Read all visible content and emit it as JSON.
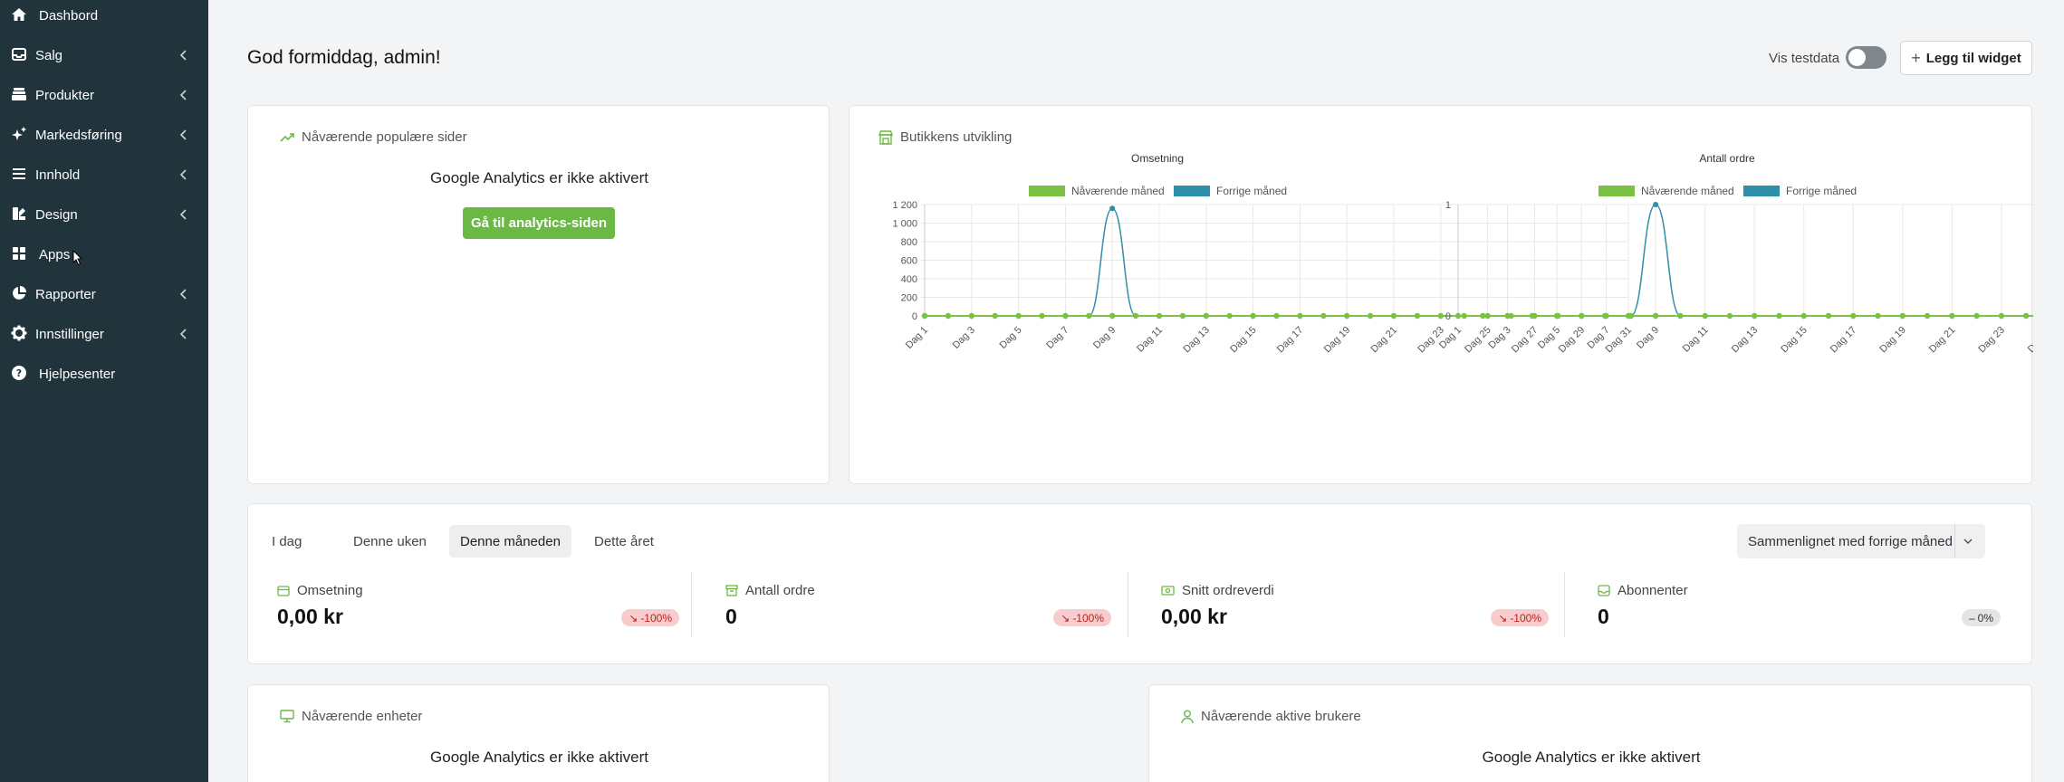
{
  "sidebar": {
    "items": [
      {
        "label": "Dashbord",
        "icon": "home-icon",
        "chevron": false
      },
      {
        "label": "Salg",
        "icon": "inbox-icon",
        "chevron": true
      },
      {
        "label": "Produkter",
        "icon": "layers-icon",
        "chevron": true
      },
      {
        "label": "Markedsføring",
        "icon": "sparkle-icon",
        "chevron": true
      },
      {
        "label": "Innhold",
        "icon": "menu-icon",
        "chevron": true
      },
      {
        "label": "Design",
        "icon": "palette-icon",
        "chevron": true
      },
      {
        "label": "Apps",
        "icon": "grid-icon",
        "chevron": false
      },
      {
        "label": "Rapporter",
        "icon": "pie-chart-icon",
        "chevron": true
      },
      {
        "label": "Innstillinger",
        "icon": "gear-icon",
        "chevron": true
      },
      {
        "label": "Hjelpesenter",
        "icon": "help-icon",
        "chevron": false
      }
    ]
  },
  "header": {
    "greeting": "God formiddag, admin!",
    "test_label": "Vis testdata",
    "add_widget_label": "Legg til widget"
  },
  "popular_pages": {
    "title": "Nåværende populære sider",
    "message": "Google Analytics er ikke aktivert",
    "button_label": "Gå til analytics-siden"
  },
  "store_dev": {
    "title": "Butikkens utvikling",
    "legend_current": "Nåværende måned",
    "legend_previous": "Forrige måned"
  },
  "chart_data": [
    {
      "type": "line",
      "title": "Omsetning",
      "categories": [
        "Dag 1",
        "Dag 2",
        "Dag 3",
        "Dag 4",
        "Dag 5",
        "Dag 6",
        "Dag 7",
        "Dag 8",
        "Dag 9",
        "Dag 10",
        "Dag 11",
        "Dag 12",
        "Dag 13",
        "Dag 14",
        "Dag 15",
        "Dag 16",
        "Dag 17",
        "Dag 18",
        "Dag 19",
        "Dag 20",
        "Dag 21",
        "Dag 22",
        "Dag 23",
        "Dag 24",
        "Dag 25",
        "Dag 26",
        "Dag 27",
        "Dag 28",
        "Dag 29",
        "Dag 30",
        "Dag 31"
      ],
      "tick_labels": [
        "Dag 1",
        "Dag 3",
        "Dag 5",
        "Dag 7",
        "Dag 9",
        "Dag 11",
        "Dag 13",
        "Dag 15",
        "Dag 17",
        "Dag 19",
        "Dag 21",
        "Dag 23",
        "Dag 25",
        "Dag 27",
        "Dag 29",
        "Dag 31"
      ],
      "y_ticks": [
        "0",
        "200",
        "400",
        "600",
        "800",
        "1 000",
        "1 200"
      ],
      "ylim": [
        0,
        1200
      ],
      "series": [
        {
          "name": "Nåværende måned",
          "color": "#7bc143",
          "values": [
            0,
            0,
            0,
            0,
            0,
            0,
            0,
            0,
            0,
            0,
            0,
            0,
            0,
            0,
            0,
            0,
            0,
            0,
            0,
            0,
            0,
            0,
            0,
            0,
            0,
            0,
            0,
            0,
            0,
            0,
            0
          ]
        },
        {
          "name": "Forrige måned",
          "color": "#2e8fa8",
          "values": [
            0,
            0,
            0,
            0,
            0,
            0,
            0,
            0,
            1158,
            0,
            0,
            0,
            0,
            0,
            0,
            0,
            0,
            0,
            0,
            0,
            0,
            0,
            0,
            0,
            0,
            0,
            0,
            0,
            0,
            0,
            0
          ]
        }
      ],
      "legend": "top",
      "grid": true
    },
    {
      "type": "line",
      "title": "Antall ordre",
      "categories": [
        "Dag 1",
        "Dag 2",
        "Dag 3",
        "Dag 4",
        "Dag 5",
        "Dag 6",
        "Dag 7",
        "Dag 8",
        "Dag 9",
        "Dag 10",
        "Dag 11",
        "Dag 12",
        "Dag 13",
        "Dag 14",
        "Dag 15",
        "Dag 16",
        "Dag 17",
        "Dag 18",
        "Dag 19",
        "Dag 20",
        "Dag 21",
        "Dag 22",
        "Dag 23",
        "Dag 24",
        "Dag 25",
        "Dag 26",
        "Dag 27",
        "Dag 28",
        "Dag 29",
        "Dag 30",
        "Dag 31"
      ],
      "tick_labels": [
        "Dag 1",
        "Dag 3",
        "Dag 5",
        "Dag 7",
        "Dag 9",
        "Dag 11",
        "Dag 13",
        "Dag 15",
        "Dag 17",
        "Dag 19",
        "Dag 21",
        "Dag 23",
        "Dag 25",
        "Dag 27",
        "Dag 29",
        "Dag 31"
      ],
      "y_ticks": [
        "0",
        "1"
      ],
      "ylim": [
        0,
        1
      ],
      "series": [
        {
          "name": "Nåværende måned",
          "color": "#7bc143",
          "values": [
            0,
            0,
            0,
            0,
            0,
            0,
            0,
            0,
            0,
            0,
            0,
            0,
            0,
            0,
            0,
            0,
            0,
            0,
            0,
            0,
            0,
            0,
            0,
            0,
            0,
            0,
            0,
            0,
            0,
            0,
            0
          ]
        },
        {
          "name": "Forrige måned",
          "color": "#2e8fa8",
          "values": [
            0,
            0,
            0,
            0,
            0,
            0,
            0,
            0,
            1,
            0,
            0,
            0,
            0,
            0,
            0,
            0,
            0,
            0,
            0,
            0,
            0,
            0,
            0,
            0,
            0,
            0,
            0,
            0,
            0,
            0,
            0
          ]
        }
      ],
      "legend": "top",
      "grid": true
    }
  ],
  "period": {
    "tabs": [
      "I dag",
      "Denne uken",
      "Denne måneden",
      "Dette året"
    ],
    "active": 2,
    "compare_label": "Sammenlignet med forrige måned"
  },
  "stats": [
    {
      "label": "Omsetning",
      "value": "0,00 kr",
      "change": "-100%",
      "icon": "credit-card-icon",
      "tone": "red"
    },
    {
      "label": "Antall ordre",
      "value": "0",
      "change": "-100%",
      "icon": "archive-icon",
      "tone": "red"
    },
    {
      "label": "Snitt ordreverdi",
      "value": "0,00 kr",
      "change": "-100%",
      "icon": "money-icon",
      "tone": "red"
    },
    {
      "label": "Abonnenter",
      "value": "0",
      "change": "0%",
      "icon": "inbox-icon",
      "tone": "gray"
    }
  ],
  "devices": {
    "title": "Nåværende enheter",
    "message": "Google Analytics er ikke aktivert"
  },
  "active_users": {
    "title": "Nåværende aktive brukere",
    "message": "Google Analytics er ikke aktivert"
  },
  "colors": {
    "sidebar_bg": "#21343c",
    "accent_green": "#6ab944",
    "series_current": "#7bc143",
    "series_previous": "#2e8fa8"
  }
}
